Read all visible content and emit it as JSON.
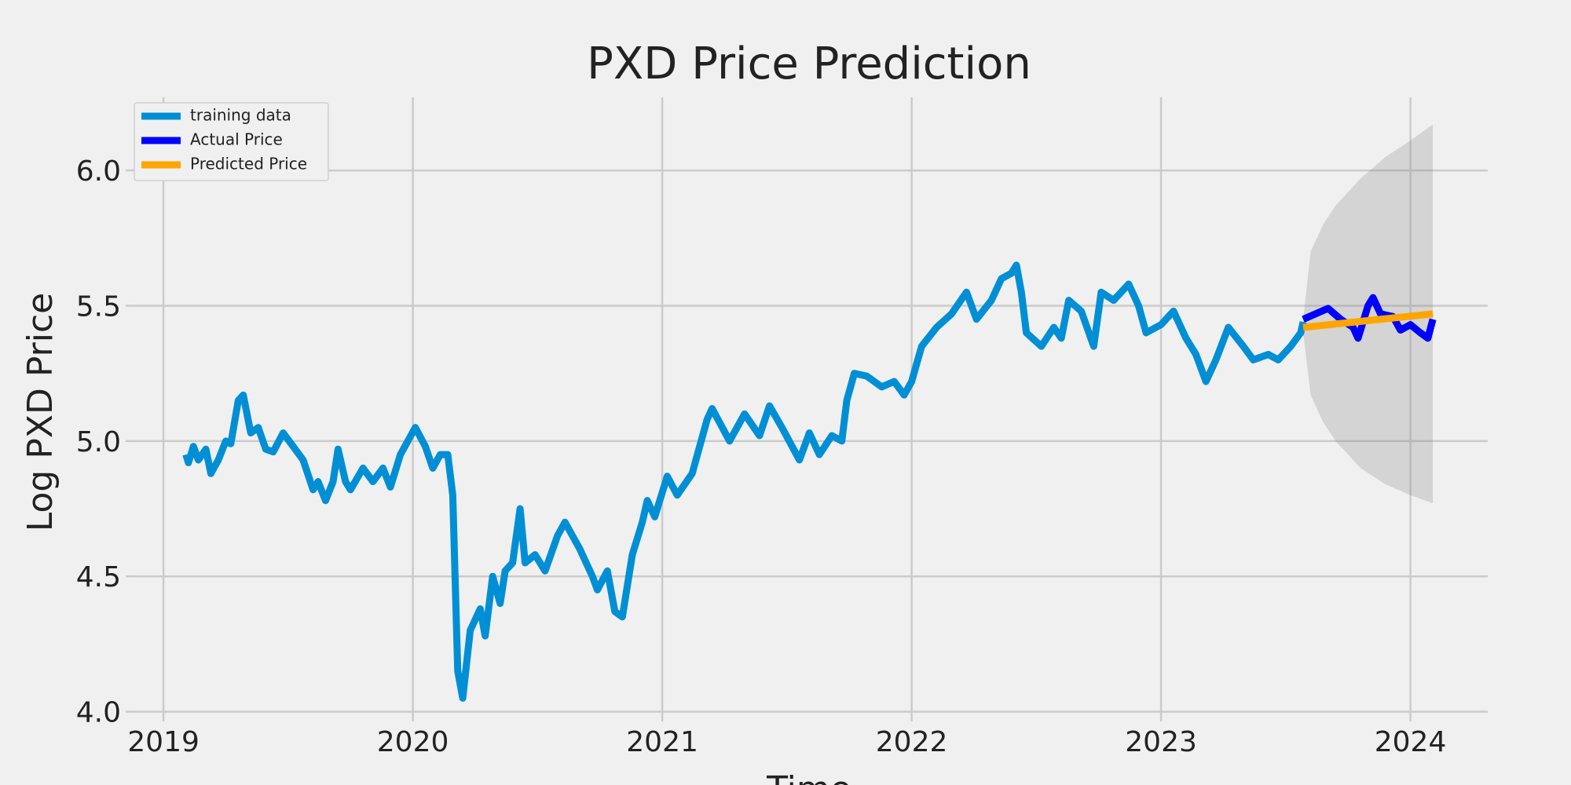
{
  "chart_data": {
    "type": "line",
    "title": "PXD Price Prediction",
    "x_label": "Time",
    "y_label": "Log PXD Price",
    "xlim": [
      2018.88,
      2024.31
    ],
    "ylim": [
      3.993,
      6.27
    ],
    "xticks": [
      2019,
      2020,
      2021,
      2022,
      2023,
      2024
    ],
    "yticks": [
      {
        "value": 4.0,
        "label": "4.0"
      },
      4.5,
      {
        "value": 5.0,
        "label": "5.0"
      },
      5.5,
      {
        "value": 6.0,
        "label": "6.0"
      }
    ],
    "grid": true,
    "legend": "upper left",
    "series": [
      {
        "name": "training data",
        "color": "#008fd5",
        "x": [
          2019.09,
          2019.1,
          2019.12,
          2019.14,
          2019.17,
          2019.19,
          2019.22,
          2019.25,
          2019.27,
          2019.3,
          2019.32,
          2019.35,
          2019.38,
          2019.41,
          2019.44,
          2019.48,
          2019.52,
          2019.56,
          2019.6,
          2019.62,
          2019.65,
          2019.68,
          2019.7,
          2019.73,
          2019.75,
          2019.8,
          2019.84,
          2019.88,
          2019.91,
          2019.95,
          2020.01,
          2020.05,
          2020.08,
          2020.11,
          2020.14,
          2020.16,
          2020.18,
          2020.2,
          2020.23,
          2020.27,
          2020.29,
          2020.32,
          2020.35,
          2020.37,
          2020.4,
          2020.43,
          2020.45,
          2020.49,
          2020.53,
          2020.58,
          2020.61,
          2020.64,
          2020.67,
          2020.72,
          2020.74,
          2020.78,
          2020.81,
          2020.84,
          2020.88,
          2020.92,
          2020.94,
          2020.97,
          2021.02,
          2021.06,
          2021.12,
          2021.18,
          2021.2,
          2021.27,
          2021.33,
          2021.39,
          2021.43,
          2021.48,
          2021.55,
          2021.59,
          2021.63,
          2021.68,
          2021.72,
          2021.74,
          2021.77,
          2021.82,
          2021.88,
          2021.93,
          2021.97,
          2022.0,
          2022.04,
          2022.1,
          2022.16,
          2022.22,
          2022.26,
          2022.32,
          2022.36,
          2022.4,
          2022.42,
          2022.44,
          2022.46,
          2022.52,
          2022.57,
          2022.6,
          2022.63,
          2022.68,
          2022.73,
          2022.76,
          2022.81,
          2022.87,
          2022.91,
          2022.94,
          2023.0,
          2023.05,
          2023.1,
          2023.14,
          2023.18,
          2023.22,
          2023.27,
          2023.33,
          2023.37,
          2023.43,
          2023.47,
          2023.52,
          2023.56,
          2023.57
        ],
        "values": [
          4.95,
          4.92,
          4.98,
          4.93,
          4.97,
          4.88,
          4.93,
          5.0,
          4.99,
          5.15,
          5.17,
          5.03,
          5.05,
          4.97,
          4.96,
          5.03,
          4.98,
          4.93,
          4.82,
          4.85,
          4.78,
          4.85,
          4.97,
          4.85,
          4.82,
          4.9,
          4.85,
          4.9,
          4.83,
          4.95,
          5.05,
          4.98,
          4.9,
          4.95,
          4.95,
          4.8,
          4.15,
          4.05,
          4.3,
          4.38,
          4.28,
          4.5,
          4.4,
          4.52,
          4.55,
          4.75,
          4.55,
          4.58,
          4.52,
          4.65,
          4.7,
          4.65,
          4.6,
          4.5,
          4.45,
          4.52,
          4.37,
          4.35,
          4.58,
          4.7,
          4.78,
          4.72,
          4.87,
          4.8,
          4.88,
          5.08,
          5.12,
          5.0,
          5.1,
          5.02,
          5.13,
          5.05,
          4.93,
          5.03,
          4.95,
          5.02,
          5.0,
          5.15,
          5.25,
          5.24,
          5.2,
          5.22,
          5.17,
          5.22,
          5.35,
          5.42,
          5.47,
          5.55,
          5.45,
          5.52,
          5.6,
          5.62,
          5.65,
          5.55,
          5.4,
          5.35,
          5.42,
          5.38,
          5.52,
          5.48,
          5.35,
          5.55,
          5.52,
          5.58,
          5.5,
          5.4,
          5.43,
          5.48,
          5.38,
          5.32,
          5.22,
          5.3,
          5.42,
          5.35,
          5.3,
          5.32,
          5.3,
          5.35,
          5.4,
          5.44
        ]
      },
      {
        "name": "Actual Price",
        "color": "#0000ff",
        "x": [
          2023.57,
          2023.62,
          2023.67,
          2023.72,
          2023.77,
          2023.79,
          2023.83,
          2023.85,
          2023.88,
          2023.93,
          2023.96,
          2024.0,
          2024.04,
          2024.07,
          2024.09
        ],
        "values": [
          5.45,
          5.47,
          5.49,
          5.45,
          5.42,
          5.38,
          5.5,
          5.53,
          5.47,
          5.46,
          5.41,
          5.43,
          5.4,
          5.38,
          5.45
        ]
      },
      {
        "name": "Predicted Price",
        "color": "#ffa500",
        "x": [
          2023.57,
          2024.09
        ],
        "values": [
          5.42,
          5.47
        ]
      }
    ],
    "band": {
      "color": "#808080",
      "x": [
        2023.57,
        2023.6,
        2023.65,
        2023.7,
        2023.8,
        2023.9,
        2024.0,
        2024.09
      ],
      "upper": [
        5.45,
        5.7,
        5.8,
        5.87,
        5.97,
        6.05,
        6.11,
        6.17
      ],
      "lower": [
        5.4,
        5.17,
        5.07,
        5.0,
        4.9,
        4.84,
        4.8,
        4.77
      ]
    }
  }
}
